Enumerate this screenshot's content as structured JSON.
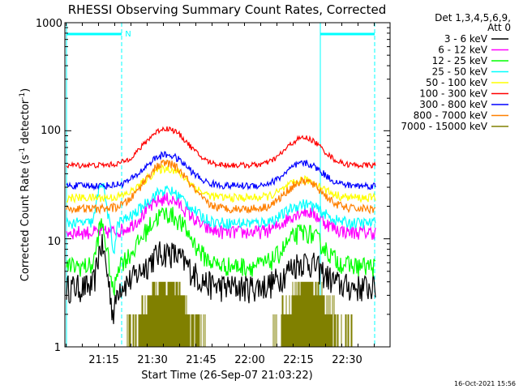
{
  "chart_data": {
    "type": "line",
    "title": "RHESSI Observing Summary Count Rates, Corrected",
    "xlabel": "Start Time (26-Sep-07 21:03:22)",
    "ylabel_main": "Corrected Count Rate (s",
    "ylabel_sup1": "-1",
    "ylabel_mid": " detector",
    "ylabel_sup2": "-1",
    "ylabel_end": ")",
    "yscale": "log",
    "ylim": [
      1,
      1000
    ],
    "xlim": [
      "21:03:22",
      "22:40:30"
    ],
    "x_tick_labels": [
      "21:15",
      "21:30",
      "21:45",
      "22:00",
      "22:15",
      "22:30"
    ],
    "y_tick_labels": [
      "1",
      "10",
      "100",
      "1000"
    ],
    "legend_header": [
      "Det 1,3,4,5,6,9,",
      "Att 0"
    ],
    "legend_placement": "right",
    "series": [
      {
        "name": "3 - 6 keV",
        "color": "#000000",
        "base": 3.6,
        "amp1": 4.0,
        "amp2": 2.6,
        "noise": 0.1,
        "dip": true
      },
      {
        "name": "6 - 12 keV",
        "color": "#ff00ff",
        "base": 11.5,
        "amp1": 12.0,
        "amp2": 6.5,
        "noise": 0.05,
        "dip": false
      },
      {
        "name": "12 - 25 keV",
        "color": "#00ff00",
        "base": 5.6,
        "amp1": 11.5,
        "amp2": 6.0,
        "noise": 0.07,
        "dip": true
      },
      {
        "name": "25 - 50 keV",
        "color": "#00ffff",
        "base": 14.0,
        "amp1": 14.0,
        "amp2": 7.0,
        "noise": 0.04,
        "dip": true
      },
      {
        "name": "50 - 100 keV",
        "color": "#ffff00",
        "base": 24.0,
        "amp1": 21.0,
        "amp2": 11.0,
        "noise": 0.03,
        "dip": false
      },
      {
        "name": "100 - 300 keV",
        "color": "#ff0000",
        "base": 48.0,
        "amp1": 57.0,
        "amp2": 38.0,
        "noise": 0.02,
        "dip": false
      },
      {
        "name": "300 - 800 keV",
        "color": "#0000ff",
        "base": 31.0,
        "amp1": 29.0,
        "amp2": 19.0,
        "noise": 0.025,
        "dip": false
      },
      {
        "name": "800 - 7000 keV",
        "color": "#ff8000",
        "base": 19.0,
        "amp1": 31.0,
        "amp2": 15.0,
        "noise": 0.03,
        "dip": false
      },
      {
        "name": "7000 - 15000 keV",
        "color": "#808000",
        "base": 1.0,
        "amp1": 2.7,
        "amp2": 1.8,
        "noise": 0.0,
        "dip": false
      }
    ],
    "flag_marker": "N",
    "footer_timestamp": "16-Oct-2021 15:56",
    "colors": {
      "background": "#ffffff",
      "axes": "#000000",
      "flag": "#00ffff"
    }
  }
}
